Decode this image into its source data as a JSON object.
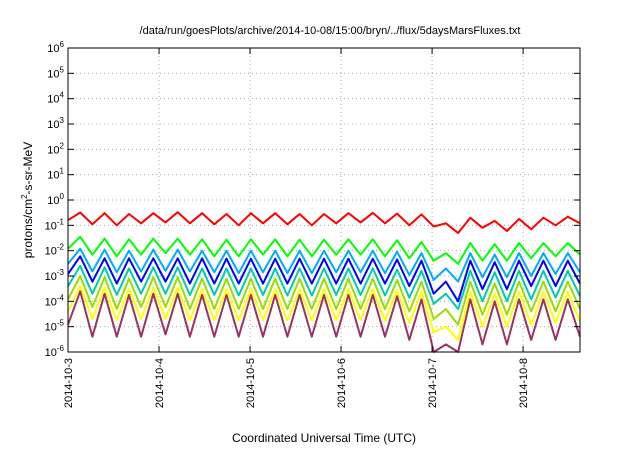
{
  "chart_data": {
    "type": "line",
    "title": "/data/run/goesPlots/archive/2014-10-08/15:00/bryn/../flux/5daysMarsFluxes.txt",
    "xlabel": "Coordinated Universal Time (UTC)",
    "ylabel": "protons/cm2-s-sr-MeV",
    "y_scale": "log",
    "ylim": [
      1e-06,
      1000000.0
    ],
    "y_ticks": [
      {
        "v": 1000000.0,
        "base": "10",
        "exp": "6"
      },
      {
        "v": 100000.0,
        "base": "10",
        "exp": "5"
      },
      {
        "v": 10000.0,
        "base": "10",
        "exp": "4"
      },
      {
        "v": 1000.0,
        "base": "10",
        "exp": "3"
      },
      {
        "v": 100.0,
        "base": "10",
        "exp": "2"
      },
      {
        "v": 10.0,
        "base": "10",
        "exp": "1"
      },
      {
        "v": 1.0,
        "base": "10",
        "exp": "0"
      },
      {
        "v": 0.1,
        "base": "10",
        "exp": "-1"
      },
      {
        "v": 0.01,
        "base": "10",
        "exp": "-2"
      },
      {
        "v": 0.001,
        "base": "10",
        "exp": "-3"
      },
      {
        "v": 0.0001,
        "base": "10",
        "exp": "-4"
      },
      {
        "v": 1e-05,
        "base": "10",
        "exp": "-5"
      },
      {
        "v": 1e-06,
        "base": "10",
        "exp": "-6"
      }
    ],
    "xlim": [
      "2014-10-03",
      "2014-10-08T15:00"
    ],
    "x_ticks": [
      "2014-10-3",
      "2014-10-4",
      "2014-10-5",
      "2014-10-6",
      "2014-10-7",
      "2014-10-8"
    ],
    "grid": true,
    "series": [
      {
        "color": "#ff0000",
        "values": [
          0.16,
          0.32,
          0.11,
          0.3,
          0.1,
          0.28,
          0.12,
          0.3,
          0.13,
          0.33,
          0.12,
          0.3,
          0.11,
          0.28,
          0.1,
          0.3,
          0.12,
          0.3,
          0.11,
          0.28,
          0.1,
          0.28,
          0.12,
          0.3,
          0.13,
          0.31,
          0.12,
          0.29,
          0.1,
          0.27,
          0.09,
          0.12,
          0.05,
          0.2,
          0.08,
          0.15,
          0.06,
          0.18,
          0.07,
          0.2,
          0.1,
          0.22,
          0.12
        ]
      },
      {
        "color": "#00ff00",
        "values": [
          0.012,
          0.035,
          0.007,
          0.03,
          0.006,
          0.028,
          0.007,
          0.03,
          0.008,
          0.03,
          0.007,
          0.028,
          0.006,
          0.027,
          0.006,
          0.028,
          0.007,
          0.028,
          0.006,
          0.027,
          0.006,
          0.027,
          0.007,
          0.028,
          0.007,
          0.028,
          0.006,
          0.026,
          0.005,
          0.022,
          0.004,
          0.008,
          0.003,
          0.02,
          0.004,
          0.018,
          0.004,
          0.02,
          0.005,
          0.02,
          0.006,
          0.02,
          0.007
        ]
      },
      {
        "color": "#00aaff",
        "values": [
          0.003,
          0.012,
          0.0015,
          0.011,
          0.0014,
          0.01,
          0.0015,
          0.011,
          0.0016,
          0.011,
          0.0015,
          0.01,
          0.0014,
          0.01,
          0.0013,
          0.01,
          0.0014,
          0.01,
          0.0013,
          0.01,
          0.0013,
          0.01,
          0.0014,
          0.01,
          0.0014,
          0.01,
          0.0013,
          0.009,
          0.0011,
          0.008,
          0.0007,
          0.002,
          0.0006,
          0.008,
          0.0009,
          0.007,
          0.0009,
          0.008,
          0.001,
          0.008,
          0.0012,
          0.008,
          0.0014
        ]
      },
      {
        "color": "#0000ff",
        "values": [
          0.0012,
          0.006,
          0.0006,
          0.005,
          0.0005,
          0.005,
          0.0006,
          0.005,
          0.0006,
          0.005,
          0.0005,
          0.005,
          0.0005,
          0.0048,
          0.0005,
          0.0048,
          0.0005,
          0.0048,
          0.0005,
          0.0048,
          0.0005,
          0.0048,
          0.0005,
          0.0048,
          0.0005,
          0.0048,
          0.0005,
          0.0045,
          0.0004,
          0.004,
          0.0002,
          0.0006,
          0.0001,
          0.004,
          0.0003,
          0.0035,
          0.0003,
          0.004,
          0.0004,
          0.004,
          0.0004,
          0.004,
          0.0005
        ]
      },
      {
        "color": "#00ccaa",
        "values": [
          0.0004,
          0.0025,
          0.0002,
          0.0022,
          0.00018,
          0.002,
          0.0002,
          0.0022,
          0.0002,
          0.0022,
          0.00018,
          0.002,
          0.00018,
          0.002,
          0.00017,
          0.002,
          0.00018,
          0.002,
          0.00017,
          0.002,
          0.00017,
          0.002,
          0.00018,
          0.002,
          0.00018,
          0.002,
          0.00017,
          0.0018,
          0.00014,
          0.0016,
          8e-05,
          0.0002,
          5e-05,
          0.0016,
          0.0001,
          0.0014,
          0.0001,
          0.0016,
          0.00012,
          0.0016,
          0.00014,
          0.0016,
          0.00016
        ]
      },
      {
        "color": "#99dd00",
        "values": [
          0.00012,
          0.001,
          6e-05,
          0.0009,
          5e-05,
          0.0008,
          6e-05,
          0.0009,
          6e-05,
          0.0009,
          5e-05,
          0.0008,
          5e-05,
          0.0008,
          5e-05,
          0.0008,
          5e-05,
          0.0008,
          5e-05,
          0.0008,
          5e-05,
          0.0008,
          5e-05,
          0.0008,
          5e-05,
          0.0008,
          5e-05,
          0.0007,
          4e-05,
          0.0006,
          2e-05,
          5e-05,
          1.2e-05,
          0.0006,
          3e-05,
          0.0005,
          3e-05,
          0.0006,
          4e-05,
          0.0006,
          4e-05,
          0.0006,
          5e-05
        ]
      },
      {
        "color": "#ffff00",
        "values": [
          4e-05,
          0.0004,
          2e-05,
          0.00035,
          1.8e-05,
          0.0003,
          2e-05,
          0.00035,
          2e-05,
          0.00035,
          1.8e-05,
          0.0003,
          1.8e-05,
          0.0003,
          1.7e-05,
          0.0003,
          1.8e-05,
          0.0003,
          1.7e-05,
          0.0003,
          1.7e-05,
          0.0003,
          1.8e-05,
          0.0003,
          1.8e-05,
          0.0003,
          1.7e-05,
          0.00028,
          1.4e-05,
          0.00024,
          6e-06,
          1e-05,
          3e-06,
          0.00024,
          1e-05,
          0.0002,
          1e-05,
          0.00024,
          1.2e-05,
          0.00024,
          1.4e-05,
          0.00024,
          1.6e-05
        ]
      },
      {
        "color": "#993366",
        "values": [
          1.2e-05,
          0.00025,
          4e-06,
          0.0002,
          4e-06,
          0.00018,
          4e-06,
          0.0002,
          5e-06,
          0.0002,
          4e-06,
          0.00018,
          4e-06,
          0.00018,
          4e-06,
          0.00018,
          4e-06,
          0.00018,
          4e-06,
          0.00018,
          4e-06,
          0.00018,
          4e-06,
          0.00018,
          4e-06,
          0.00018,
          4e-06,
          0.00016,
          3e-06,
          0.00012,
          1e-06,
          2e-06,
          1e-06,
          0.00012,
          2e-06,
          0.0001,
          2e-06,
          0.00012,
          3e-06,
          0.00012,
          3e-06,
          0.00012,
          4e-06
        ]
      }
    ]
  }
}
